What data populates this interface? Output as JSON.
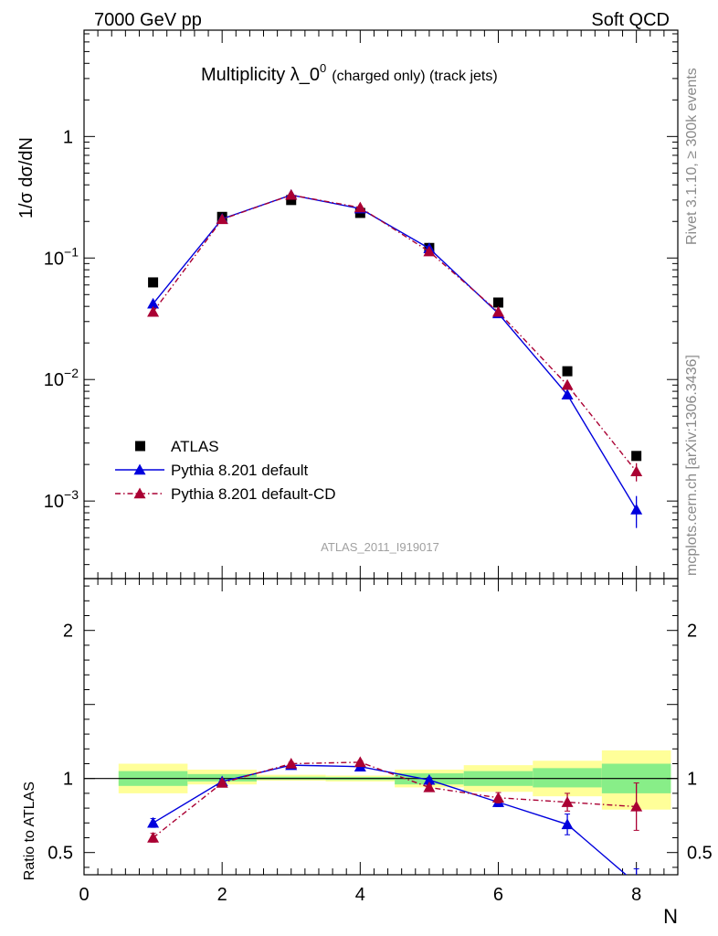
{
  "header": {
    "energy_label": "7000 GeV pp",
    "process_label": "Soft QCD"
  },
  "side_text": {
    "rivet": "Rivet 3.1.10, ≥ 300k events",
    "source": "mcplots.cern.ch [arXiv:1306.3436]"
  },
  "chart_data": [
    {
      "type": "scatter",
      "title": "Multiplicity λ_0",
      "title_sup": "0",
      "title_suffix": "(charged only) (track jets)",
      "analysis_id": "ATLAS_2011_I919017",
      "xlabel": "N",
      "ylabel": "1/σ dσ/dN",
      "yscale": "log",
      "xlim": [
        0,
        8.6
      ],
      "ylim": [
        0.00023,
        7.5
      ],
      "y_ticks": [
        {
          "value": 1,
          "label": "1"
        },
        {
          "value": 0.1,
          "label": "10",
          "sup": "−1"
        },
        {
          "value": 0.01,
          "label": "10",
          "sup": "−2"
        },
        {
          "value": 0.001,
          "label": "10",
          "sup": "−3"
        }
      ],
      "legend_position": "lower-left",
      "series": [
        {
          "name": "ATLAS",
          "style": "data",
          "color": "#000000",
          "marker": "square",
          "x": [
            1,
            2,
            3,
            4,
            5,
            6,
            7,
            8
          ],
          "y": [
            0.063,
            0.218,
            0.3,
            0.235,
            0.121,
            0.043,
            0.0117,
            0.00235
          ]
        },
        {
          "name": "Pythia 8.201 default",
          "style": "solid",
          "color": "#0000dd",
          "marker": "triangle",
          "x": [
            1,
            2,
            3,
            4,
            5,
            6,
            7,
            8
          ],
          "y": [
            0.042,
            0.21,
            0.33,
            0.255,
            0.12,
            0.035,
            0.0075,
            0.00085
          ],
          "yerr": [
            0,
            0,
            0,
            0,
            0,
            0,
            0,
            0.00025
          ]
        },
        {
          "name": "Pythia 8.201 default-CD",
          "style": "dashdot",
          "color": "#aa0033",
          "marker": "triangle",
          "x": [
            1,
            2,
            3,
            4,
            5,
            6,
            7,
            8
          ],
          "y": [
            0.036,
            0.208,
            0.33,
            0.26,
            0.113,
            0.036,
            0.009,
            0.00175
          ],
          "yerr": [
            0,
            0,
            0,
            0,
            0,
            0,
            0,
            0.0003
          ]
        }
      ]
    },
    {
      "type": "scatter",
      "ylabel": "Ratio to ATLAS",
      "xlabel": "N",
      "xlim": [
        0,
        8.6
      ],
      "ylim": [
        0.35,
        2.35
      ],
      "x_ticks": [
        0,
        2,
        4,
        6,
        8
      ],
      "y_ticks": [
        0.5,
        1,
        2
      ],
      "bands": [
        {
          "x_lo": 0.5,
          "x_hi": 1.5,
          "yellow": [
            0.9,
            1.1
          ],
          "green": [
            0.95,
            1.05
          ]
        },
        {
          "x_lo": 1.5,
          "x_hi": 2.5,
          "yellow": [
            0.96,
            1.06
          ],
          "green": [
            0.98,
            1.03
          ]
        },
        {
          "x_lo": 2.5,
          "x_hi": 3.5,
          "yellow": [
            0.985,
            1.025
          ],
          "green": [
            0.993,
            1.012
          ]
        },
        {
          "x_lo": 3.5,
          "x_hi": 4.5,
          "yellow": [
            0.98,
            1.02
          ],
          "green": [
            0.99,
            1.01
          ]
        },
        {
          "x_lo": 4.5,
          "x_hi": 5.5,
          "yellow": [
            0.94,
            1.06
          ],
          "green": [
            0.96,
            1.035
          ]
        },
        {
          "x_lo": 5.5,
          "x_hi": 6.5,
          "yellow": [
            0.91,
            1.09
          ],
          "green": [
            0.95,
            1.05
          ]
        },
        {
          "x_lo": 6.5,
          "x_hi": 7.5,
          "yellow": [
            0.88,
            1.12
          ],
          "green": [
            0.94,
            1.07
          ]
        },
        {
          "x_lo": 7.5,
          "x_hi": 8.5,
          "yellow": [
            0.79,
            1.19
          ],
          "green": [
            0.9,
            1.1
          ]
        }
      ],
      "series": [
        {
          "name": "Pythia 8.201 default",
          "color": "#0000dd",
          "style": "solid",
          "marker": "triangle",
          "x": [
            1,
            2,
            3,
            4,
            5,
            6,
            7,
            8
          ],
          "y": [
            0.7,
            0.98,
            1.09,
            1.08,
            0.99,
            0.84,
            0.69,
            0.29
          ],
          "yerr": [
            0.03,
            0.015,
            0.01,
            0.01,
            0.015,
            0.03,
            0.07,
            0.1
          ]
        },
        {
          "name": "Pythia 8.201 default-CD",
          "color": "#aa0033",
          "style": "dashdot",
          "marker": "triangle",
          "x": [
            1,
            2,
            3,
            4,
            5,
            6,
            7,
            8
          ],
          "y": [
            0.6,
            0.97,
            1.1,
            1.11,
            0.94,
            0.87,
            0.84,
            0.81
          ],
          "yerr": [
            0.03,
            0.015,
            0.01,
            0.01,
            0.015,
            0.035,
            0.06,
            0.16
          ]
        }
      ]
    }
  ]
}
